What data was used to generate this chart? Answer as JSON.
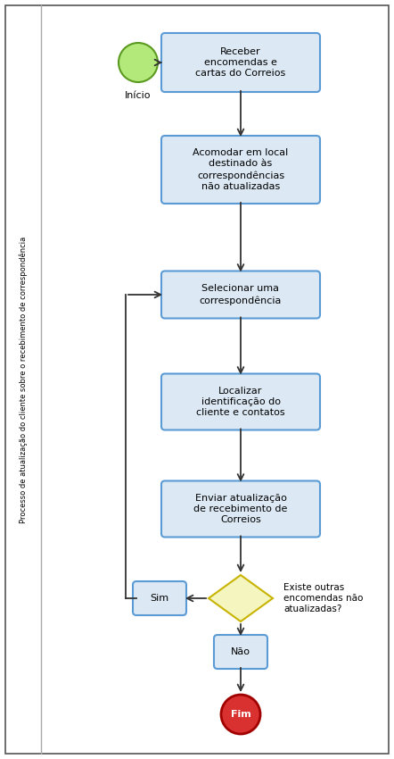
{
  "title": "Processo de atualização do cliente sobre o recebimento de correspondência",
  "background": "#ffffff",
  "border_color": "#555555",
  "lane_line_color": "#aaaaaa",
  "box_fill": "#dce9f5",
  "box_edge": "#5b9bd5",
  "diamond_fill": "#f5f5c0",
  "diamond_edge": "#c8b400",
  "start_fill": "#b3e87a",
  "start_edge": "#5a9a20",
  "end_fill": "#d93030",
  "end_edge": "#a00000",
  "arrow_color": "#333333",
  "text_color": "#000000",
  "sim_label": "Sim",
  "nao_label": "Não",
  "fim_label": "Fim",
  "inicio_label": "Início",
  "diamond_question": "Existe outras\nencomendas não\natualizadas?",
  "box_labels": [
    "Receber\nencomendas e\ncartas do Correios",
    "Acomodar em local\ndestinado às\ncorrespondências\nnão atualizadas",
    "Selecionar uma\ncorrespondência",
    "Localizar\nidentificação do\ncliente e contatos",
    "Enviar atualização\nde recebimento de\nCorreios"
  ],
  "figw": 4.42,
  "figh": 8.5,
  "dpi": 100
}
